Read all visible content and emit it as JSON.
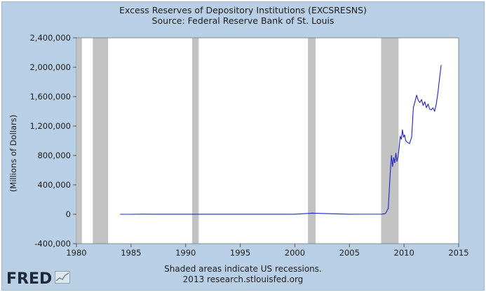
{
  "chart_data": {
    "type": "line",
    "title": "Excess Reserves of Depository Institutions (EXCSRESNS)",
    "subtitle": "Source: Federal Reserve Bank of St. Louis",
    "xlabel": "",
    "ylabel": "(Millions of Dollars)",
    "xlim": [
      1980,
      2015
    ],
    "ylim": [
      -400000,
      2400000
    ],
    "x_ticks": [
      1980,
      1985,
      1990,
      1995,
      2000,
      2005,
      2010,
      2015
    ],
    "x_tick_labels": [
      "1980",
      "1985",
      "1990",
      "1995",
      "2000",
      "2005",
      "2010",
      "2015"
    ],
    "y_ticks": [
      -400000,
      0,
      400000,
      800000,
      1200000,
      1600000,
      2000000,
      2400000
    ],
    "y_tick_labels": [
      "-400,000",
      "0",
      "400,000",
      "800,000",
      "1,200,000",
      "1,600,000",
      "2,000,000",
      "2,400,000"
    ],
    "grid": false,
    "recessions": [
      [
        1980.0,
        1980.5
      ],
      [
        1981.5,
        1982.9
      ],
      [
        1990.6,
        1991.2
      ],
      [
        2001.2,
        2001.9
      ],
      [
        2007.9,
        2009.5
      ]
    ],
    "series": [
      {
        "color": "#2222cc",
        "x": [
          1984.0,
          1985.0,
          1986.0,
          1987.0,
          1988.0,
          1990.0,
          1995.0,
          2000.0,
          2001.6,
          2005.0,
          2008.0,
          2008.3,
          2008.55,
          2008.75,
          2008.85,
          2008.95,
          2009.05,
          2009.15,
          2009.25,
          2009.35,
          2009.45,
          2009.55,
          2009.65,
          2009.75,
          2009.85,
          2009.95,
          2010.05,
          2010.15,
          2010.3,
          2010.5,
          2010.7,
          2010.85,
          2011.0,
          2011.15,
          2011.3,
          2011.45,
          2011.6,
          2011.75,
          2011.9,
          2012.05,
          2012.2,
          2012.35,
          2012.5,
          2012.65,
          2012.8,
          2012.95,
          2013.1,
          2013.25,
          2013.4
        ],
        "values": [
          0,
          0,
          2000,
          1000,
          1000,
          1000,
          1000,
          1000,
          15000,
          1000,
          2000,
          10000,
          80000,
          600000,
          800000,
          650000,
          770000,
          700000,
          830000,
          720000,
          780000,
          900000,
          1060000,
          1020000,
          1150000,
          1050000,
          1080000,
          1000000,
          980000,
          960000,
          1050000,
          1450000,
          1530000,
          1620000,
          1550000,
          1520000,
          1560000,
          1480000,
          1530000,
          1450000,
          1500000,
          1430000,
          1420000,
          1450000,
          1400000,
          1500000,
          1650000,
          1850000,
          2030000
        ]
      }
    ]
  },
  "notes": {
    "line1": "Shaded areas indicate US recessions.",
    "line2": "2013 research.stlouisfed.org"
  },
  "logo": {
    "text": "FRED"
  }
}
